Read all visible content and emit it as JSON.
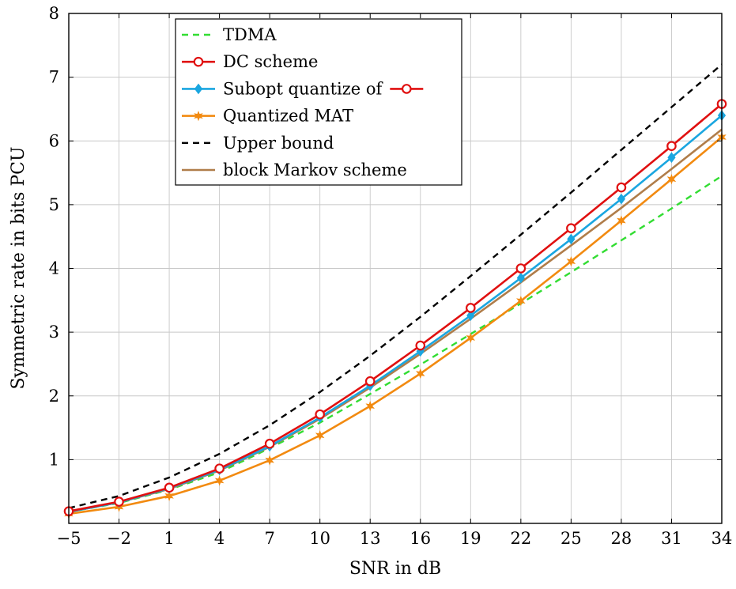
{
  "chart_data": {
    "type": "line",
    "title": "",
    "xlabel": "SNR in dB",
    "ylabel": "Symmetric rate in bits PCU",
    "xlim": [
      -5,
      34
    ],
    "ylim": [
      0,
      8
    ],
    "grid": true,
    "legend_position": "top-center",
    "x": [
      -5,
      -2,
      1,
      4,
      7,
      10,
      13,
      16,
      19,
      22,
      25,
      28,
      31,
      34
    ],
    "x_tick_labels": [
      "−5",
      "−2",
      "1",
      "4",
      "7",
      "10",
      "13",
      "16",
      "19",
      "22",
      "25",
      "28",
      "31",
      "34"
    ],
    "y_ticks": [
      1,
      2,
      3,
      4,
      5,
      6,
      7,
      8
    ],
    "y_tick_labels": [
      "1",
      "2",
      "3",
      "4",
      "5",
      "6",
      "7",
      "8"
    ],
    "series": [
      {
        "name": "TDMA",
        "color": "#33dd33",
        "dash": "dashed",
        "marker": "none",
        "values": [
          0.18,
          0.32,
          0.53,
          0.8,
          1.18,
          1.58,
          2.03,
          2.49,
          2.97,
          3.45,
          3.94,
          4.44,
          4.94,
          5.45
        ]
      },
      {
        "name": "DC scheme",
        "color": "#e01010",
        "dash": "solid",
        "marker": "circle",
        "values": [
          0.19,
          0.34,
          0.56,
          0.86,
          1.25,
          1.71,
          2.23,
          2.79,
          3.38,
          4.0,
          4.63,
          5.27,
          5.92,
          6.58
        ]
      },
      {
        "name": "Subopt quantize of",
        "legend_marker_name": "DC scheme",
        "color": "#1aa6e0",
        "dash": "solid",
        "marker": "diamond",
        "values": [
          0.18,
          0.33,
          0.55,
          0.84,
          1.21,
          1.66,
          2.16,
          2.7,
          3.26,
          3.85,
          4.46,
          5.09,
          5.74,
          6.4
        ]
      },
      {
        "name": "Quantized MAT",
        "color": "#f28a10",
        "dash": "solid",
        "marker": "star",
        "values": [
          0.15,
          0.26,
          0.43,
          0.67,
          0.99,
          1.38,
          1.84,
          2.35,
          2.91,
          3.49,
          4.11,
          4.75,
          5.4,
          6.06
        ]
      },
      {
        "name": "Upper bound",
        "color": "#000000",
        "dash": "dashed",
        "marker": "none",
        "values": [
          0.24,
          0.43,
          0.72,
          1.09,
          1.54,
          2.06,
          2.63,
          3.24,
          3.88,
          4.53,
          5.19,
          5.86,
          6.53,
          7.2
        ]
      },
      {
        "name": "block Markov scheme",
        "color": "#b07d4a",
        "dash": "solid",
        "marker": "none",
        "values": [
          0.18,
          0.33,
          0.54,
          0.83,
          1.2,
          1.64,
          2.13,
          2.66,
          3.21,
          3.78,
          4.36,
          4.95,
          5.56,
          6.18
        ]
      }
    ]
  }
}
